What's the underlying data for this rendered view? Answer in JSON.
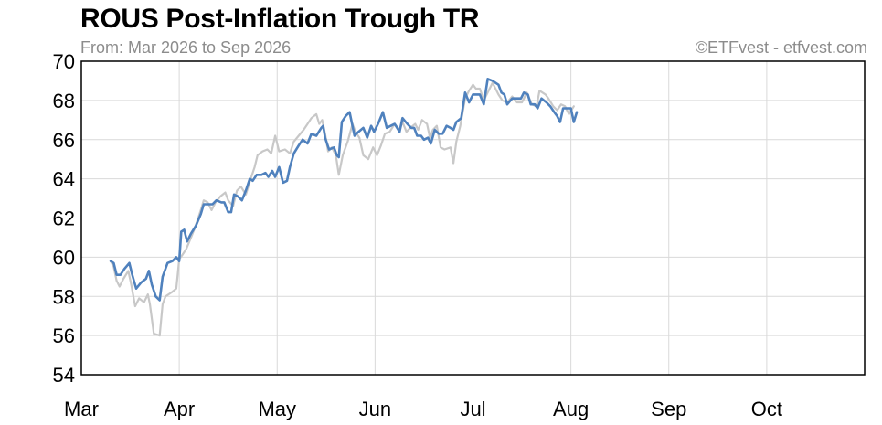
{
  "chart_data": {
    "type": "line",
    "title": "ROUS Post-Inflation Trough TR",
    "subtitle": "From: Mar 2026 to Sep 2026",
    "credit": "©ETFvest - etfvest.com",
    "xlabel": "",
    "ylabel": "",
    "ylim": [
      54,
      70
    ],
    "yticks": [
      54,
      56,
      58,
      60,
      62,
      64,
      66,
      68,
      70
    ],
    "xlim": [
      0,
      8
    ],
    "xticks": [
      {
        "label": "Mar",
        "x": 0
      },
      {
        "label": "Apr",
        "x": 1
      },
      {
        "label": "May",
        "x": 2
      },
      {
        "label": "Jun",
        "x": 3
      },
      {
        "label": "Jul",
        "x": 4
      },
      {
        "label": "Aug",
        "x": 5
      },
      {
        "label": "Sep",
        "x": 6
      },
      {
        "label": "Oct",
        "x": 7
      }
    ],
    "grid": true,
    "series": [
      {
        "color": "#c8c8c8",
        "points": [
          [
            0.3,
            59.8
          ],
          [
            0.33,
            59.5
          ],
          [
            0.36,
            58.8
          ],
          [
            0.39,
            58.5
          ],
          [
            0.43,
            58.9
          ],
          [
            0.48,
            59.3
          ],
          [
            0.51,
            58.6
          ],
          [
            0.55,
            57.5
          ],
          [
            0.59,
            57.9
          ],
          [
            0.64,
            57.7
          ],
          [
            0.68,
            58.1
          ],
          [
            0.7,
            57.6
          ],
          [
            0.74,
            56.1
          ],
          [
            0.8,
            56.0
          ],
          [
            0.83,
            57.6
          ],
          [
            0.86,
            58.0
          ],
          [
            0.92,
            58.2
          ],
          [
            0.97,
            58.4
          ],
          [
            1.0,
            59.9
          ],
          [
            1.03,
            60.1
          ],
          [
            1.07,
            60.4
          ],
          [
            1.12,
            61.0
          ],
          [
            1.16,
            61.5
          ],
          [
            1.22,
            62.4
          ],
          [
            1.25,
            62.9
          ],
          [
            1.29,
            62.8
          ],
          [
            1.33,
            62.4
          ],
          [
            1.37,
            62.8
          ],
          [
            1.42,
            63.1
          ],
          [
            1.47,
            63.3
          ],
          [
            1.5,
            62.9
          ],
          [
            1.55,
            62.6
          ],
          [
            1.59,
            63.4
          ],
          [
            1.63,
            63.6
          ],
          [
            1.68,
            63.2
          ],
          [
            1.73,
            64.0
          ],
          [
            1.77,
            64.6
          ],
          [
            1.8,
            65.2
          ],
          [
            1.85,
            65.4
          ],
          [
            1.9,
            65.5
          ],
          [
            1.94,
            65.3
          ],
          [
            1.98,
            66.2
          ],
          [
            2.02,
            65.4
          ],
          [
            2.08,
            65.5
          ],
          [
            2.13,
            65.3
          ],
          [
            2.17,
            65.9
          ],
          [
            2.22,
            66.2
          ],
          [
            2.27,
            66.5
          ],
          [
            2.31,
            66.8
          ],
          [
            2.35,
            67.1
          ],
          [
            2.4,
            67.3
          ],
          [
            2.43,
            66.8
          ],
          [
            2.46,
            67.0
          ],
          [
            2.49,
            66.3
          ],
          [
            2.52,
            65.4
          ],
          [
            2.56,
            65.6
          ],
          [
            2.6,
            65.2
          ],
          [
            2.63,
            64.2
          ],
          [
            2.67,
            65.2
          ],
          [
            2.72,
            65.9
          ],
          [
            2.77,
            66.8
          ],
          [
            2.8,
            66.4
          ],
          [
            2.84,
            66.1
          ],
          [
            2.88,
            65.2
          ],
          [
            2.93,
            65.0
          ],
          [
            2.98,
            65.6
          ],
          [
            3.02,
            65.2
          ],
          [
            3.06,
            65.7
          ],
          [
            3.1,
            66.3
          ],
          [
            3.15,
            66.4
          ],
          [
            3.2,
            66.8
          ],
          [
            3.25,
            66.5
          ],
          [
            3.28,
            66.9
          ],
          [
            3.32,
            66.4
          ],
          [
            3.36,
            66.6
          ],
          [
            3.41,
            66.8
          ],
          [
            3.44,
            66.5
          ],
          [
            3.48,
            67.0
          ],
          [
            3.53,
            66.8
          ],
          [
            3.56,
            66.1
          ],
          [
            3.59,
            66.5
          ],
          [
            3.63,
            66.7
          ],
          [
            3.67,
            65.6
          ],
          [
            3.71,
            65.5
          ],
          [
            3.77,
            65.6
          ],
          [
            3.8,
            64.8
          ],
          [
            3.83,
            65.9
          ],
          [
            3.87,
            66.7
          ],
          [
            3.92,
            68.1
          ],
          [
            3.96,
            68.5
          ],
          [
            4.0,
            68.8
          ],
          [
            4.03,
            68.6
          ],
          [
            4.07,
            68.6
          ],
          [
            4.11,
            68.0
          ],
          [
            4.16,
            68.5
          ],
          [
            4.2,
            68.9
          ],
          [
            4.26,
            68.3
          ],
          [
            4.3,
            68.0
          ],
          [
            4.35,
            67.9
          ],
          [
            4.4,
            68.2
          ],
          [
            4.45,
            67.9
          ],
          [
            4.5,
            67.9
          ],
          [
            4.55,
            68.4
          ],
          [
            4.6,
            67.8
          ],
          [
            4.65,
            67.7
          ],
          [
            4.68,
            68.5
          ],
          [
            4.74,
            68.3
          ],
          [
            4.77,
            68.1
          ],
          [
            4.82,
            67.7
          ],
          [
            4.86,
            67.5
          ],
          [
            4.9,
            67.8
          ],
          [
            4.94,
            67.7
          ],
          [
            4.98,
            67.3
          ],
          [
            5.03,
            67.7
          ]
        ]
      },
      {
        "color": "#4f81bd",
        "points": [
          [
            0.3,
            59.8
          ],
          [
            0.33,
            59.7
          ],
          [
            0.36,
            59.1
          ],
          [
            0.4,
            59.1
          ],
          [
            0.44,
            59.4
          ],
          [
            0.49,
            59.7
          ],
          [
            0.52,
            59.1
          ],
          [
            0.56,
            58.4
          ],
          [
            0.61,
            58.7
          ],
          [
            0.66,
            58.9
          ],
          [
            0.69,
            59.3
          ],
          [
            0.72,
            58.6
          ],
          [
            0.76,
            58.0
          ],
          [
            0.8,
            57.8
          ],
          [
            0.83,
            59.0
          ],
          [
            0.88,
            59.7
          ],
          [
            0.93,
            59.8
          ],
          [
            0.97,
            60.0
          ],
          [
            1.0,
            59.8
          ],
          [
            1.02,
            61.3
          ],
          [
            1.05,
            61.4
          ],
          [
            1.08,
            60.8
          ],
          [
            1.12,
            61.2
          ],
          [
            1.17,
            61.6
          ],
          [
            1.22,
            62.2
          ],
          [
            1.25,
            62.7
          ],
          [
            1.3,
            62.7
          ],
          [
            1.34,
            62.7
          ],
          [
            1.38,
            62.9
          ],
          [
            1.43,
            62.8
          ],
          [
            1.46,
            62.8
          ],
          [
            1.5,
            62.3
          ],
          [
            1.53,
            62.3
          ],
          [
            1.56,
            63.2
          ],
          [
            1.6,
            63.1
          ],
          [
            1.64,
            62.9
          ],
          [
            1.68,
            63.4
          ],
          [
            1.72,
            64.0
          ],
          [
            1.75,
            63.9
          ],
          [
            1.79,
            64.2
          ],
          [
            1.84,
            64.2
          ],
          [
            1.88,
            64.3
          ],
          [
            1.91,
            64.1
          ],
          [
            1.95,
            64.4
          ],
          [
            1.98,
            64.1
          ],
          [
            2.02,
            64.6
          ],
          [
            2.06,
            63.8
          ],
          [
            2.1,
            63.9
          ],
          [
            2.13,
            64.6
          ],
          [
            2.17,
            65.3
          ],
          [
            2.22,
            65.7
          ],
          [
            2.26,
            66.0
          ],
          [
            2.31,
            65.8
          ],
          [
            2.35,
            66.3
          ],
          [
            2.4,
            66.2
          ],
          [
            2.45,
            66.6
          ],
          [
            2.47,
            66.7
          ],
          [
            2.49,
            66.1
          ],
          [
            2.53,
            65.5
          ],
          [
            2.58,
            65.6
          ],
          [
            2.61,
            65.2
          ],
          [
            2.63,
            65.1
          ],
          [
            2.66,
            66.9
          ],
          [
            2.7,
            67.2
          ],
          [
            2.74,
            67.4
          ],
          [
            2.79,
            66.2
          ],
          [
            2.83,
            66.4
          ],
          [
            2.88,
            66.6
          ],
          [
            2.92,
            66.1
          ],
          [
            2.96,
            66.7
          ],
          [
            2.99,
            66.4
          ],
          [
            3.03,
            66.8
          ],
          [
            3.08,
            67.4
          ],
          [
            3.12,
            66.6
          ],
          [
            3.16,
            66.7
          ],
          [
            3.2,
            66.8
          ],
          [
            3.25,
            66.4
          ],
          [
            3.28,
            67.1
          ],
          [
            3.33,
            66.8
          ],
          [
            3.37,
            66.6
          ],
          [
            3.4,
            66.6
          ],
          [
            3.43,
            66.2
          ],
          [
            3.47,
            66.2
          ],
          [
            3.5,
            66.0
          ],
          [
            3.54,
            66.1
          ],
          [
            3.57,
            65.8
          ],
          [
            3.61,
            66.5
          ],
          [
            3.65,
            66.3
          ],
          [
            3.69,
            66.3
          ],
          [
            3.73,
            66.7
          ],
          [
            3.77,
            66.6
          ],
          [
            3.8,
            66.5
          ],
          [
            3.83,
            66.9
          ],
          [
            3.88,
            67.1
          ],
          [
            3.92,
            68.4
          ],
          [
            3.96,
            67.9
          ],
          [
            4.0,
            68.3
          ],
          [
            4.04,
            68.3
          ],
          [
            4.07,
            68.3
          ],
          [
            4.11,
            67.8
          ],
          [
            4.15,
            69.1
          ],
          [
            4.2,
            69.0
          ],
          [
            4.26,
            68.8
          ],
          [
            4.29,
            68.4
          ],
          [
            4.32,
            68.3
          ],
          [
            4.35,
            67.8
          ],
          [
            4.4,
            68.1
          ],
          [
            4.45,
            68.1
          ],
          [
            4.49,
            68.1
          ],
          [
            4.52,
            68.4
          ],
          [
            4.56,
            68.3
          ],
          [
            4.59,
            67.8
          ],
          [
            4.63,
            67.8
          ],
          [
            4.66,
            67.6
          ],
          [
            4.7,
            68.1
          ],
          [
            4.75,
            67.9
          ],
          [
            4.79,
            67.7
          ],
          [
            4.83,
            67.4
          ],
          [
            4.86,
            67.2
          ],
          [
            4.89,
            66.9
          ],
          [
            4.92,
            67.6
          ],
          [
            4.96,
            67.6
          ],
          [
            5.0,
            67.6
          ],
          [
            5.03,
            66.9
          ],
          [
            5.06,
            67.4
          ]
        ]
      }
    ]
  }
}
